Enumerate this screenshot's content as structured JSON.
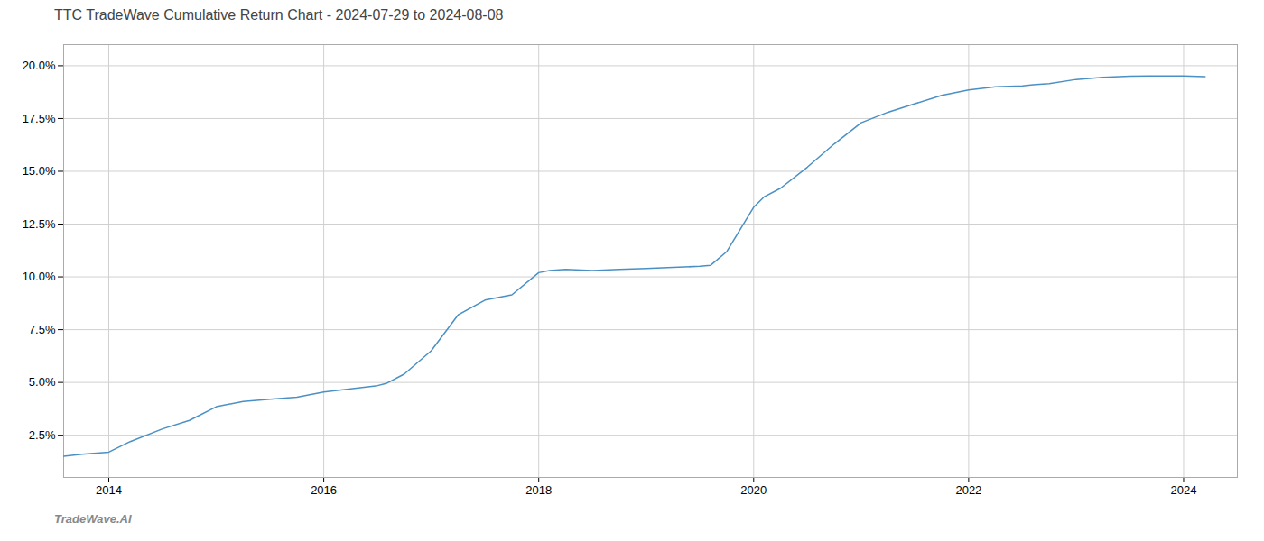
{
  "chart_data": {
    "type": "line",
    "title": "TTC TradeWave Cumulative Return Chart - 2024-07-29 to 2024-08-08",
    "annotations": [
      "TradeWave.AI"
    ],
    "x": [
      2013.58,
      2013.75,
      2014.0,
      2014.2,
      2014.5,
      2014.75,
      2015.0,
      2015.25,
      2015.5,
      2015.75,
      2016.0,
      2016.25,
      2016.5,
      2016.58,
      2016.75,
      2017.0,
      2017.25,
      2017.5,
      2017.75,
      2018.0,
      2018.1,
      2018.25,
      2018.5,
      2018.75,
      2019.0,
      2019.25,
      2019.5,
      2019.6,
      2019.75,
      2020.0,
      2020.1,
      2020.25,
      2020.5,
      2020.75,
      2021.0,
      2021.25,
      2021.5,
      2021.75,
      2022.0,
      2022.25,
      2022.5,
      2022.6,
      2022.75,
      2023.0,
      2023.25,
      2023.5,
      2023.75,
      2024.0,
      2024.2
    ],
    "values": [
      1.5,
      1.6,
      1.7,
      2.2,
      2.8,
      3.2,
      3.85,
      4.1,
      4.2,
      4.3,
      4.55,
      4.7,
      4.85,
      4.95,
      5.4,
      6.5,
      8.2,
      8.9,
      9.15,
      10.2,
      10.3,
      10.35,
      10.3,
      10.35,
      10.4,
      10.45,
      10.5,
      10.55,
      11.2,
      13.3,
      13.8,
      14.2,
      15.2,
      16.3,
      17.3,
      17.8,
      18.2,
      18.6,
      18.85,
      19.0,
      19.05,
      19.1,
      19.15,
      19.35,
      19.45,
      19.5,
      19.52,
      19.52,
      19.48
    ],
    "color": "#4a90c4",
    "xlim": [
      2013.58,
      2024.5
    ],
    "ylim": [
      0.5,
      21.0
    ],
    "xticks": [
      2014,
      2016,
      2018,
      2020,
      2022,
      2024
    ],
    "yticks": [
      {
        "value": 2.5,
        "label": "2.5%"
      },
      {
        "value": 5.0,
        "label": "5.0%"
      },
      {
        "value": 7.5,
        "label": "7.5%"
      },
      {
        "value": 10.0,
        "label": "10.0%"
      },
      {
        "value": 12.5,
        "label": "12.5%"
      },
      {
        "value": 15.0,
        "label": "15.0%"
      },
      {
        "value": 17.5,
        "label": "17.5%"
      },
      {
        "value": 20.0,
        "label": "20.0%"
      }
    ],
    "grid": true
  }
}
